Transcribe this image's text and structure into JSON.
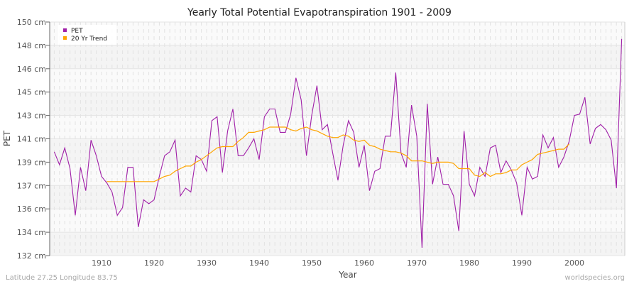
{
  "chart_data": {
    "type": "line",
    "title": "Yearly Total Potential Evapotranspiration 1901 - 2009",
    "xlabel": "Year",
    "ylabel": "PET",
    "ylim": [
      132,
      150
    ],
    "xlim": [
      1901,
      2009
    ],
    "y_ticks": [
      132,
      133.8,
      135.6,
      137.4,
      139.2,
      141,
      142.8,
      144.6,
      146.4,
      148.2,
      150
    ],
    "y_tick_labels": [
      "132 cm",
      "134 cm",
      "136 cm",
      "137 cm",
      "139 cm",
      "141 cm",
      "143 cm",
      "145 cm",
      "146 cm",
      "148 cm",
      "150 cm"
    ],
    "x_ticks": [
      1910,
      1920,
      1930,
      1940,
      1950,
      1960,
      1970,
      1980,
      1990,
      2000
    ],
    "x_tick_labels": [
      "1910",
      "1920",
      "1930",
      "1940",
      "1950",
      "1960",
      "1970",
      "1980",
      "1990",
      "2000"
    ],
    "grid": true,
    "legend_position": "top-left",
    "series": [
      {
        "name": "PET",
        "color": "#a020a8",
        "x_start": 1901,
        "values": [
          140.0,
          139.0,
          140.3,
          138.7,
          135.1,
          138.8,
          137.0,
          140.9,
          139.7,
          138.1,
          137.6,
          136.9,
          135.1,
          135.7,
          138.8,
          138.8,
          134.2,
          136.3,
          136.0,
          136.3,
          138.1,
          139.7,
          140.0,
          140.9,
          136.6,
          137.2,
          136.9,
          139.7,
          139.4,
          138.5,
          142.4,
          142.7,
          138.4,
          141.6,
          143.3,
          139.7,
          139.7,
          140.3,
          141.0,
          139.4,
          142.7,
          143.3,
          143.3,
          141.5,
          141.5,
          142.9,
          145.7,
          144.0,
          139.7,
          142.8,
          145.1,
          141.7,
          142.1,
          139.9,
          137.8,
          140.5,
          142.4,
          141.5,
          138.8,
          140.5,
          137.0,
          138.5,
          138.7,
          141.2,
          141.2,
          146.1,
          139.9,
          138.8,
          143.6,
          141.2,
          132.6,
          143.7,
          137.5,
          139.6,
          137.5,
          137.5,
          136.6,
          133.9,
          141.6,
          137.5,
          136.6,
          138.8,
          138.1,
          140.3,
          140.5,
          138.4,
          139.3,
          138.6,
          137.6,
          135.1,
          138.8,
          137.9,
          138.1,
          141.3,
          140.3,
          141.1,
          138.8,
          139.6,
          140.8,
          142.8,
          142.9,
          144.2,
          140.6,
          141.8,
          142.1,
          141.7,
          140.9,
          137.2,
          148.7
        ]
      },
      {
        "name": "20 Yr Trend",
        "color": "#ffa500",
        "x_start": 1911,
        "values": [
          137.7,
          137.7,
          137.7,
          137.7,
          137.7,
          137.7,
          137.7,
          137.7,
          137.7,
          137.7,
          137.9,
          138.1,
          138.2,
          138.5,
          138.7,
          138.9,
          138.9,
          139.2,
          139.4,
          139.7,
          140.0,
          140.3,
          140.4,
          140.4,
          140.4,
          140.8,
          141.1,
          141.5,
          141.5,
          141.6,
          141.7,
          141.9,
          141.9,
          141.9,
          141.9,
          141.7,
          141.6,
          141.8,
          141.9,
          141.7,
          141.6,
          141.4,
          141.2,
          141.1,
          141.1,
          141.3,
          141.2,
          140.9,
          140.8,
          140.9,
          140.5,
          140.4,
          140.2,
          140.1,
          140.0,
          140.0,
          139.9,
          139.7,
          139.3,
          139.3,
          139.3,
          139.2,
          139.1,
          139.2,
          139.2,
          139.2,
          139.1,
          138.7,
          138.7,
          138.7,
          138.2,
          138.1,
          138.4,
          138.1,
          138.3,
          138.3,
          138.4,
          138.6,
          138.6,
          139.0,
          139.2,
          139.4,
          139.8,
          139.9,
          140.0,
          140.1,
          140.2,
          140.2,
          140.6
        ]
      }
    ]
  },
  "footer": {
    "left": "Latitude 27.25 Longitude 83.75",
    "right": "worldspecies.org"
  }
}
